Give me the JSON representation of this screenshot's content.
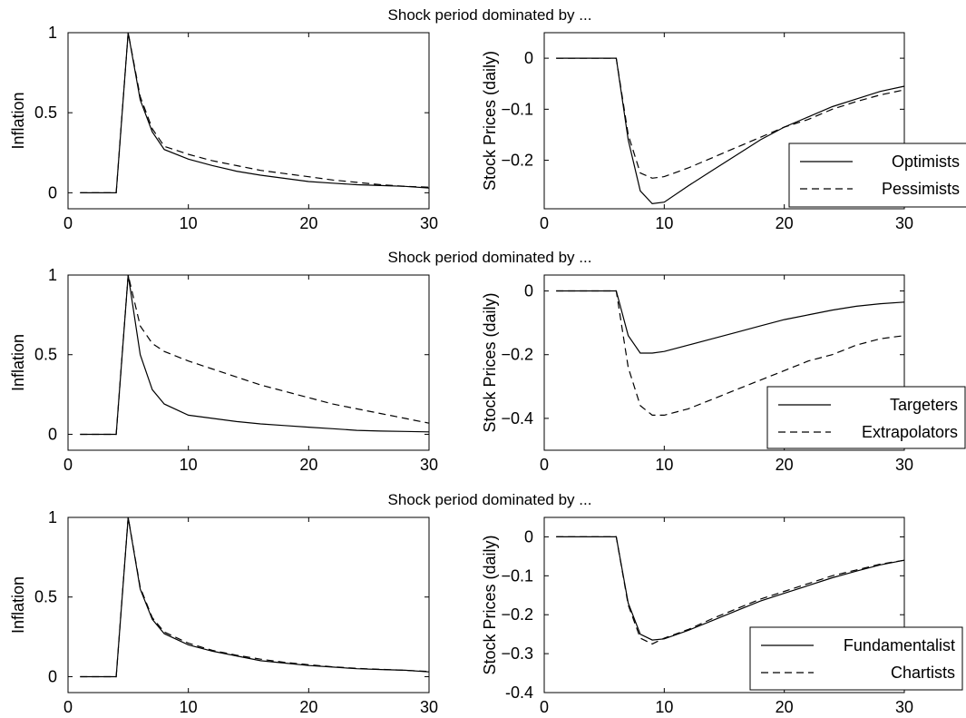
{
  "figure": {
    "rows": [
      {
        "super_title": "Shock period dominated by ..."
      },
      {
        "super_title": "Shock period dominated by ..."
      },
      {
        "super_title": "Shock period dominated by ..."
      }
    ]
  },
  "chart_data": [
    {
      "type": "line",
      "panel": "row1-left",
      "ylabel": "Inflation",
      "xlim": [
        0,
        30
      ],
      "ylim": [
        -0.1,
        1
      ],
      "xticks": [
        0,
        10,
        20,
        30
      ],
      "yticks": [
        0,
        0.5,
        1
      ],
      "ytick_labels": [
        "0",
        "0.5",
        "1"
      ],
      "legend": null,
      "series": [
        {
          "style": "solid",
          "x": [
            1,
            2,
            3,
            4,
            5,
            6,
            7,
            8,
            10,
            12,
            14,
            16,
            18,
            20,
            22,
            24,
            26,
            28,
            30
          ],
          "y": [
            0,
            0,
            0,
            0,
            1,
            0.58,
            0.38,
            0.27,
            0.21,
            0.17,
            0.135,
            0.11,
            0.09,
            0.07,
            0.06,
            0.05,
            0.045,
            0.04,
            0.03
          ]
        },
        {
          "style": "dashed",
          "x": [
            1,
            2,
            3,
            4,
            5,
            6,
            7,
            8,
            10,
            12,
            14,
            16,
            18,
            20,
            22,
            24,
            26,
            28,
            30
          ],
          "y": [
            0,
            0,
            0,
            0,
            1,
            0.6,
            0.4,
            0.29,
            0.24,
            0.2,
            0.17,
            0.14,
            0.12,
            0.1,
            0.08,
            0.065,
            0.05,
            0.04,
            0.035
          ]
        }
      ]
    },
    {
      "type": "line",
      "panel": "row1-right",
      "ylabel": "Stock Prices (daily)",
      "xlim": [
        0,
        30
      ],
      "ylim": [
        -0.295,
        0.05
      ],
      "xticks": [
        0,
        10,
        20,
        30
      ],
      "yticks": [
        0,
        -0.1,
        -0.2
      ],
      "ytick_labels": [
        "0",
        "−0.1",
        "−0.2"
      ],
      "legend": {
        "position": "lower-right",
        "entries": [
          {
            "label": "Optimists",
            "style": "solid"
          },
          {
            "label": "Pessimists",
            "style": "dashed"
          }
        ]
      },
      "series": [
        {
          "name": "Optimists",
          "style": "solid",
          "x": [
            1,
            3,
            5,
            6,
            7,
            8,
            9,
            10,
            12,
            14,
            16,
            18,
            20,
            22,
            24,
            26,
            28,
            30
          ],
          "y": [
            0,
            0,
            0,
            0,
            -0.16,
            -0.26,
            -0.285,
            -0.282,
            -0.25,
            -0.22,
            -0.19,
            -0.16,
            -0.135,
            -0.115,
            -0.095,
            -0.08,
            -0.065,
            -0.055
          ]
        },
        {
          "name": "Pessimists",
          "style": "dashed",
          "x": [
            1,
            3,
            5,
            6,
            7,
            8,
            9,
            10,
            12,
            14,
            16,
            18,
            20,
            22,
            24,
            26,
            28,
            30
          ],
          "y": [
            0,
            0,
            0,
            0,
            -0.15,
            -0.225,
            -0.235,
            -0.232,
            -0.215,
            -0.195,
            -0.175,
            -0.155,
            -0.135,
            -0.12,
            -0.1,
            -0.085,
            -0.072,
            -0.062
          ]
        }
      ]
    },
    {
      "type": "line",
      "panel": "row2-left",
      "ylabel": "Inflation",
      "xlim": [
        0,
        30
      ],
      "ylim": [
        -0.1,
        1
      ],
      "xticks": [
        0,
        10,
        20,
        30
      ],
      "yticks": [
        0,
        0.5,
        1
      ],
      "ytick_labels": [
        "0",
        "0.5",
        "1"
      ],
      "legend": null,
      "series": [
        {
          "name": "Targeters",
          "style": "solid",
          "x": [
            1,
            2,
            3,
            4,
            5,
            6,
            7,
            8,
            10,
            12,
            14,
            16,
            18,
            20,
            22,
            24,
            26,
            28,
            30
          ],
          "y": [
            0,
            0,
            0,
            0,
            1,
            0.5,
            0.28,
            0.19,
            0.12,
            0.1,
            0.08,
            0.065,
            0.055,
            0.045,
            0.035,
            0.025,
            0.02,
            0.018,
            0.015
          ]
        },
        {
          "name": "Extrapolators",
          "style": "dashed",
          "x": [
            1,
            2,
            3,
            4,
            5,
            6,
            7,
            8,
            10,
            12,
            14,
            16,
            18,
            20,
            22,
            24,
            26,
            28,
            30
          ],
          "y": [
            0,
            0,
            0,
            0,
            1,
            0.68,
            0.57,
            0.52,
            0.46,
            0.41,
            0.36,
            0.31,
            0.27,
            0.23,
            0.19,
            0.16,
            0.13,
            0.1,
            0.07
          ]
        }
      ]
    },
    {
      "type": "line",
      "panel": "row2-right",
      "ylabel": "Stock Prices (daily)",
      "xlim": [
        0,
        30
      ],
      "ylim": [
        -0.5,
        0.05
      ],
      "xticks": [
        0,
        10,
        20,
        30
      ],
      "yticks": [
        0,
        -0.2,
        -0.4
      ],
      "ytick_labels": [
        "0",
        "−0.2",
        "−0.4"
      ],
      "legend": {
        "position": "lower-right",
        "entries": [
          {
            "label": "Targeters",
            "style": "solid"
          },
          {
            "label": "Extrapolators",
            "style": "dashed"
          }
        ]
      },
      "series": [
        {
          "name": "Targeters",
          "style": "solid",
          "x": [
            1,
            3,
            5,
            6,
            7,
            8,
            9,
            10,
            12,
            14,
            16,
            18,
            20,
            22,
            24,
            26,
            28,
            30
          ],
          "y": [
            0,
            0,
            0,
            0,
            -0.14,
            -0.195,
            -0.195,
            -0.19,
            -0.17,
            -0.15,
            -0.13,
            -0.11,
            -0.09,
            -0.075,
            -0.06,
            -0.048,
            -0.04,
            -0.035
          ]
        },
        {
          "name": "Extrapolators",
          "style": "dashed",
          "x": [
            1,
            3,
            5,
            6,
            7,
            8,
            9,
            10,
            12,
            14,
            16,
            18,
            20,
            22,
            24,
            26,
            28,
            30
          ],
          "y": [
            0,
            0,
            0,
            0,
            -0.24,
            -0.36,
            -0.39,
            -0.39,
            -0.37,
            -0.34,
            -0.31,
            -0.28,
            -0.25,
            -0.22,
            -0.2,
            -0.17,
            -0.15,
            -0.14
          ]
        }
      ]
    },
    {
      "type": "line",
      "panel": "row3-left",
      "ylabel": "Inflation",
      "xlim": [
        0,
        30
      ],
      "ylim": [
        -0.1,
        1
      ],
      "xticks": [
        0,
        10,
        20,
        30
      ],
      "yticks": [
        0,
        0.5,
        1
      ],
      "ytick_labels": [
        "0",
        "0.5",
        "1"
      ],
      "legend": null,
      "series": [
        {
          "name": "Fundamentalist",
          "style": "solid",
          "x": [
            1,
            2,
            3,
            4,
            5,
            6,
            7,
            8,
            10,
            12,
            14,
            16,
            18,
            20,
            22,
            24,
            26,
            28,
            30
          ],
          "y": [
            0,
            0,
            0,
            0,
            1,
            0.55,
            0.36,
            0.27,
            0.2,
            0.16,
            0.13,
            0.1,
            0.085,
            0.07,
            0.06,
            0.05,
            0.045,
            0.04,
            0.03
          ]
        },
        {
          "name": "Chartists",
          "style": "dashed",
          "x": [
            1,
            2,
            3,
            4,
            5,
            6,
            7,
            8,
            10,
            12,
            14,
            16,
            18,
            20,
            22,
            24,
            26,
            28,
            30
          ],
          "y": [
            0,
            0,
            0,
            0,
            1,
            0.56,
            0.37,
            0.28,
            0.21,
            0.165,
            0.135,
            0.11,
            0.09,
            0.075,
            0.062,
            0.052,
            0.046,
            0.04,
            0.032
          ]
        }
      ]
    },
    {
      "type": "line",
      "panel": "row3-right",
      "ylabel": "Stock Prices (daily)",
      "xlim": [
        0,
        30
      ],
      "ylim": [
        -0.4,
        0.05
      ],
      "xticks": [
        0,
        10,
        20,
        30
      ],
      "yticks": [
        0,
        -0.1,
        -0.2,
        -0.3,
        -0.4
      ],
      "ytick_labels": [
        "0",
        "−0.1",
        "−0.2",
        "−0.3",
        "-0.4"
      ],
      "legend": {
        "position": "lower-right",
        "entries": [
          {
            "label": "Fundamentalist",
            "style": "solid"
          },
          {
            "label": "Chartists",
            "style": "dashed"
          }
        ]
      },
      "series": [
        {
          "name": "Fundamentalist",
          "style": "solid",
          "x": [
            1,
            3,
            5,
            6,
            7,
            8,
            9,
            10,
            12,
            14,
            16,
            18,
            20,
            22,
            24,
            26,
            28,
            30
          ],
          "y": [
            0,
            0,
            0,
            0,
            -0.17,
            -0.25,
            -0.265,
            -0.262,
            -0.24,
            -0.215,
            -0.19,
            -0.165,
            -0.145,
            -0.125,
            -0.105,
            -0.088,
            -0.072,
            -0.06
          ]
        },
        {
          "name": "Chartists",
          "style": "dashed",
          "x": [
            1,
            3,
            5,
            6,
            7,
            8,
            9,
            10,
            12,
            14,
            16,
            18,
            20,
            22,
            24,
            26,
            28,
            30
          ],
          "y": [
            0,
            0,
            0,
            0,
            -0.175,
            -0.26,
            -0.275,
            -0.26,
            -0.238,
            -0.21,
            -0.185,
            -0.16,
            -0.14,
            -0.12,
            -0.1,
            -0.085,
            -0.07,
            -0.06
          ]
        }
      ]
    }
  ]
}
